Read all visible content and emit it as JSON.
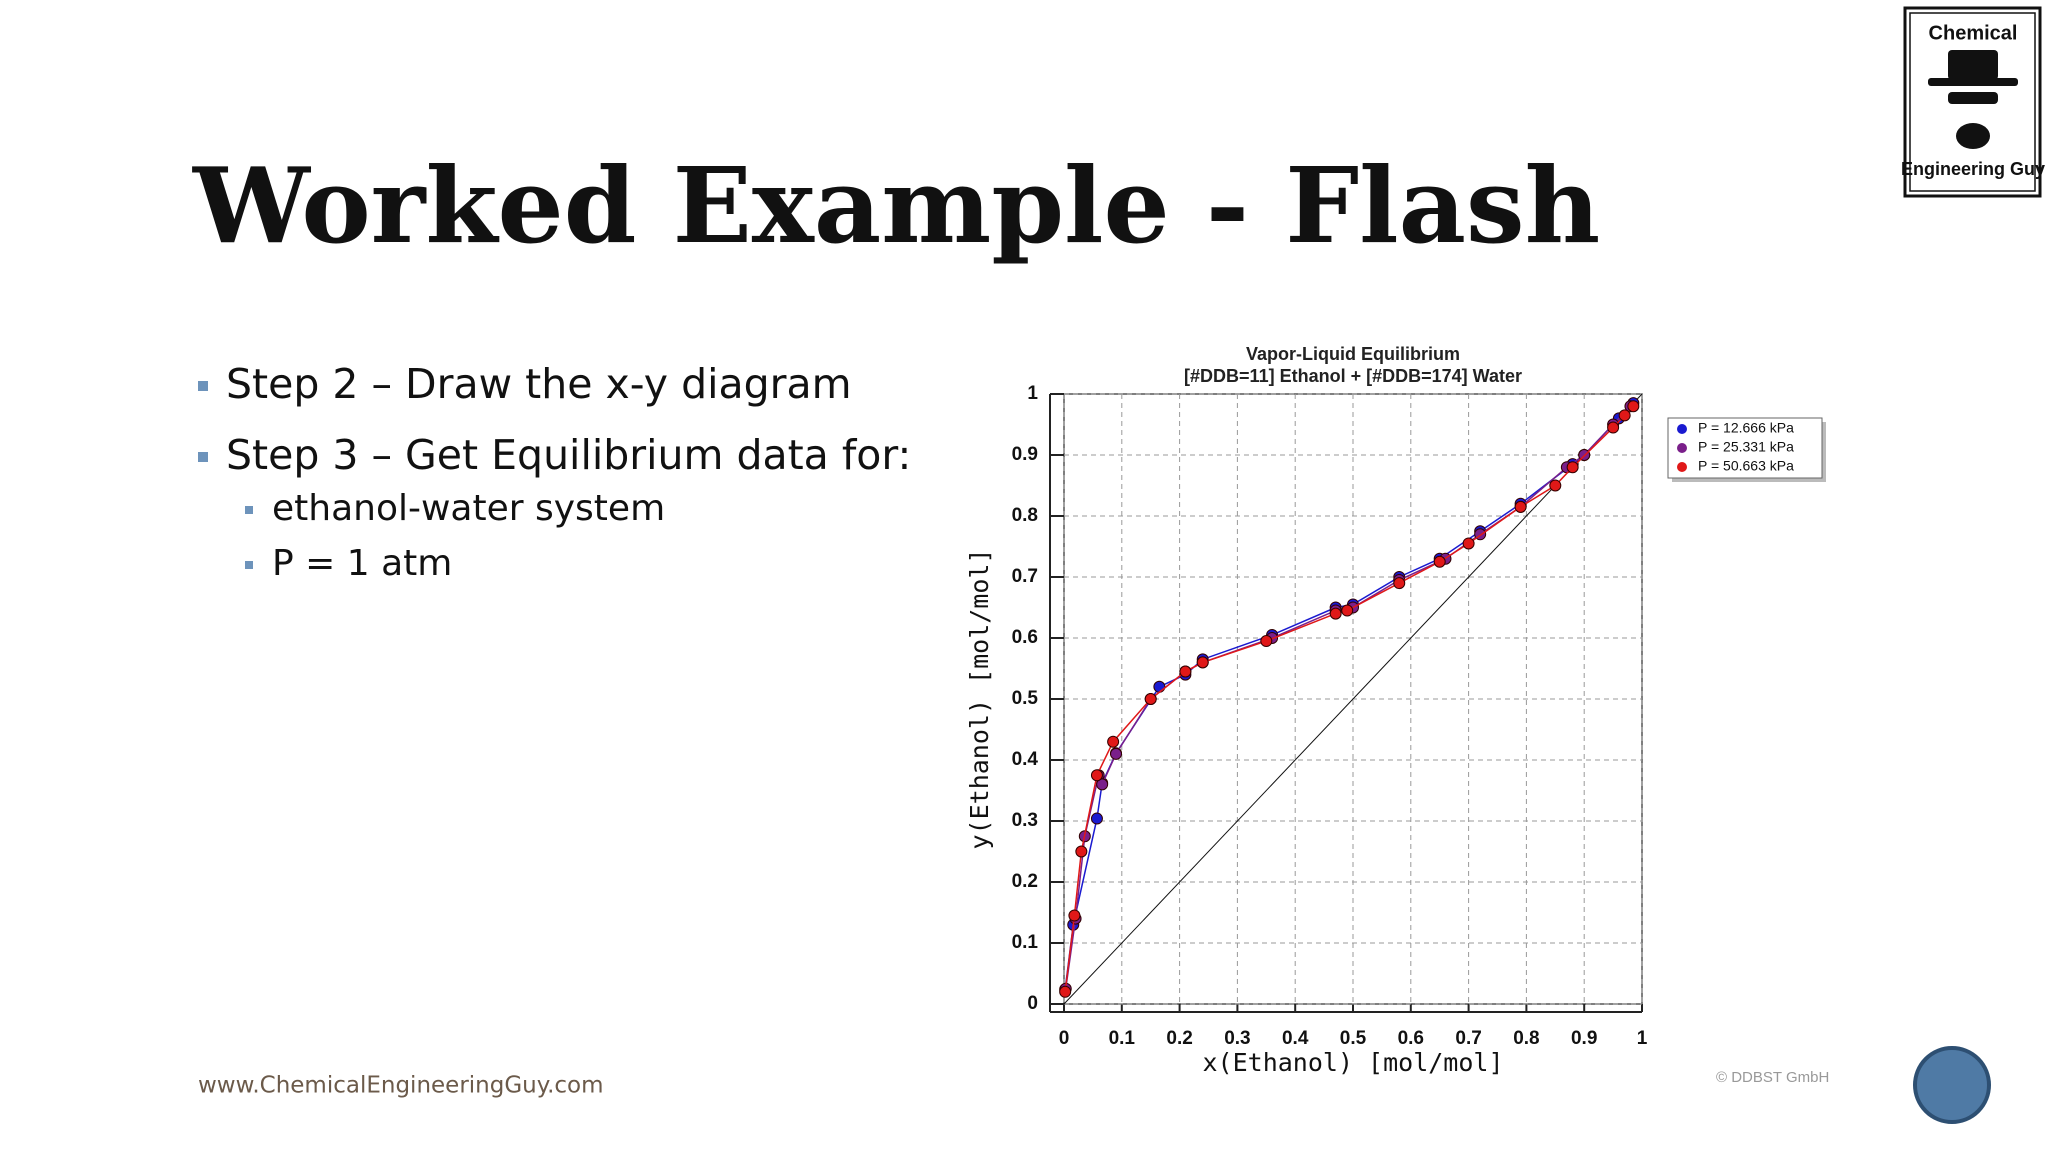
{
  "header": {
    "title": "Worked Example - Flash"
  },
  "logo": {
    "top": "Chemical",
    "bottom": "Engineering Guy"
  },
  "bullets": [
    {
      "text": "Step 2 – Draw the x-y diagram"
    },
    {
      "text": "Step 3 – Get Equilibrium data for:",
      "items": [
        "ethanol-water system",
        "P = 1 atm"
      ]
    }
  ],
  "footer": {
    "url": "www.ChemicalEngineeringGuy.com",
    "credit": "© DDBST GmbH"
  },
  "chart_data": {
    "type": "scatter",
    "title": "Vapor-Liquid Equilibrium",
    "subtitle": "[#DDB=11] Ethanol + [#DDB=174] Water",
    "x_label": "x(Ethanol) [mol/mol]",
    "y_label": "y(Ethanol) [mol/mol]",
    "xlim": [
      0,
      1
    ],
    "ylim": [
      0,
      1
    ],
    "xticks": [
      0,
      0.1,
      0.2,
      0.3,
      0.4,
      0.5,
      0.6,
      0.7,
      0.8,
      0.9,
      1
    ],
    "yticks": [
      0,
      0.1,
      0.2,
      0.3,
      0.4,
      0.5,
      0.6,
      0.7,
      0.8,
      0.9,
      1
    ],
    "grid": true,
    "legend": "right",
    "series": [
      {
        "name": "P = 12.666 kPa",
        "color": "#1a1ad0",
        "x": [
          0.002,
          0.016,
          0.057,
          0.066,
          0.09,
          0.165,
          0.21,
          0.24,
          0.36,
          0.47,
          0.5,
          0.58,
          0.65,
          0.72,
          0.79,
          0.88,
          0.9,
          0.96,
          0.985
        ],
        "values": [
          0.024,
          0.13,
          0.304,
          0.362,
          0.411,
          0.52,
          0.54,
          0.565,
          0.605,
          0.65,
          0.655,
          0.7,
          0.73,
          0.775,
          0.82,
          0.885,
          0.9,
          0.96,
          0.985
        ]
      },
      {
        "name": "P = 25.331 kPa",
        "color": "#7a1f8a",
        "x": [
          0.003,
          0.02,
          0.036,
          0.06,
          0.066,
          0.09,
          0.15,
          0.21,
          0.24,
          0.36,
          0.47,
          0.5,
          0.58,
          0.66,
          0.72,
          0.79,
          0.87,
          0.9,
          0.95,
          0.98
        ],
        "values": [
          0.025,
          0.14,
          0.275,
          0.375,
          0.36,
          0.41,
          0.5,
          0.545,
          0.56,
          0.6,
          0.645,
          0.65,
          0.695,
          0.73,
          0.77,
          0.815,
          0.88,
          0.9,
          0.95,
          0.98
        ]
      },
      {
        "name": "P = 50.663 kPa",
        "color": "#e01818",
        "x": [
          0.002,
          0.018,
          0.03,
          0.057,
          0.085,
          0.15,
          0.21,
          0.24,
          0.35,
          0.47,
          0.49,
          0.58,
          0.65,
          0.7,
          0.79,
          0.85,
          0.88,
          0.95,
          0.97,
          0.985
        ],
        "values": [
          0.02,
          0.145,
          0.25,
          0.375,
          0.43,
          0.5,
          0.545,
          0.56,
          0.595,
          0.64,
          0.645,
          0.69,
          0.725,
          0.755,
          0.815,
          0.85,
          0.88,
          0.945,
          0.965,
          0.98
        ]
      }
    ]
  }
}
